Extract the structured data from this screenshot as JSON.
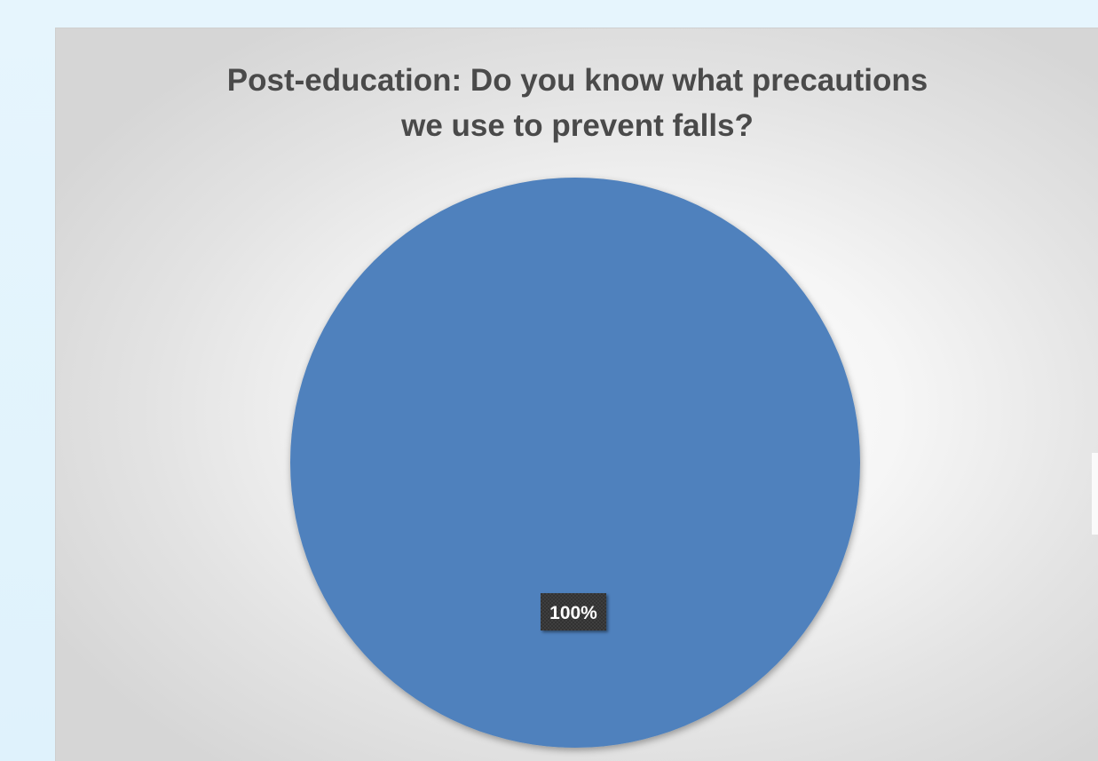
{
  "chart_data": {
    "type": "pie",
    "title_lines": [
      "Post-education:  Do you know what precautions",
      "we use to prevent falls?"
    ],
    "slices": [
      {
        "value": 100,
        "label": "100%",
        "color": "#4f81bd"
      }
    ],
    "legend": "none"
  },
  "colors": {
    "slice": "#4f81bd",
    "label_box": "#3a3a3a",
    "label_text": "#ffffff",
    "title": "#4a4a4a"
  }
}
